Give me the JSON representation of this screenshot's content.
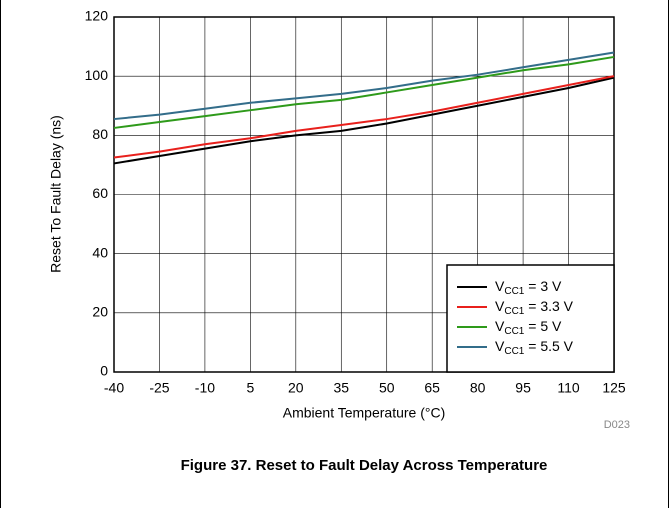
{
  "chart_data": {
    "type": "line",
    "caption": "Figure 37. Reset to Fault Delay Across Temperature",
    "x_label": "Ambient Temperature (°C)",
    "y_label": "Reset To Fault Delay (ns)",
    "note": "D023",
    "x": [
      -40,
      -25,
      -10,
      5,
      20,
      35,
      50,
      65,
      80,
      95,
      110,
      125
    ],
    "xlim": [
      -40,
      125
    ],
    "xticks": [
      -40,
      -25,
      -10,
      5,
      20,
      35,
      50,
      65,
      80,
      95,
      110,
      125
    ],
    "ylim": [
      0,
      120
    ],
    "yticks": [
      0,
      20,
      40,
      60,
      80,
      100,
      120
    ],
    "grid": true,
    "legend": "lower-right",
    "series": [
      {
        "name": "VCC1 = 3 V",
        "color": "#000000",
        "values": [
          70.5,
          73,
          75.5,
          78,
          80,
          81.5,
          84,
          87,
          90,
          93,
          96,
          99.5
        ]
      },
      {
        "name": "VCC1 = 3.3 V",
        "color": "#e8201c",
        "values": [
          72.5,
          74.5,
          77,
          79,
          81.5,
          83.5,
          85.5,
          88,
          91,
          94,
          97,
          100
        ]
      },
      {
        "name": "VCC1 = 5 V",
        "color": "#2e9a1a",
        "values": [
          82.5,
          84.5,
          86.5,
          88.5,
          90.5,
          92,
          94.5,
          97,
          99.5,
          102,
          104,
          106.5
        ]
      },
      {
        "name": "VCC1 = 5.5 V",
        "color": "#336d8a",
        "values": [
          85.5,
          87,
          89,
          91,
          92.5,
          94,
          96,
          98.5,
          100.5,
          103,
          105.5,
          108
        ]
      }
    ]
  }
}
